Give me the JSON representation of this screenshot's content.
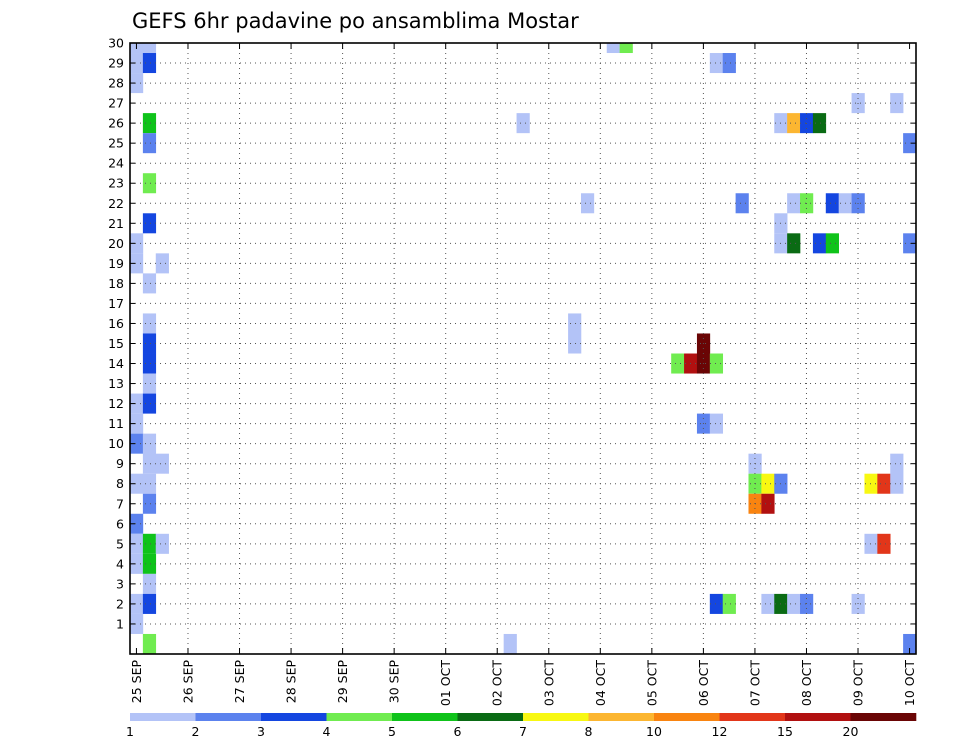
{
  "chart_data": {
    "type": "heatmap",
    "title": "GEFS 6hr padavine po ansamblima Mostar",
    "y_ticks": [
      "1",
      "2",
      "3",
      "4",
      "5",
      "6",
      "7",
      "8",
      "9",
      "10",
      "11",
      "12",
      "13",
      "14",
      "15",
      "16",
      "17",
      "18",
      "19",
      "20",
      "21",
      "22",
      "23",
      "24",
      "25",
      "26",
      "27",
      "28",
      "29",
      "30"
    ],
    "x_ticks": [
      "25 SEP",
      "26 SEP",
      "27 SEP",
      "28 SEP",
      "29 SEP",
      "30 SEP",
      "01 OCT",
      "02 OCT",
      "03 OCT",
      "04 OCT",
      "05 OCT",
      "06 OCT",
      "07 OCT",
      "08 OCT",
      "09 OCT",
      "10 OCT"
    ],
    "ylim": [
      0,
      30
    ],
    "grid": true,
    "colorbar": {
      "labels": [
        "1",
        "2",
        "3",
        "4",
        "5",
        "6",
        "7",
        "8",
        "10",
        "12",
        "15",
        "20"
      ],
      "colors": [
        "#b3c3f7",
        "#5c82ee",
        "#1446e0",
        "#70ec50",
        "#0fc31a",
        "#0a6b14",
        "#f8f812",
        "#fcb631",
        "#f98410",
        "#e2361a",
        "#b11010",
        "#6a0505"
      ]
    },
    "cells": [
      [
        0,
        30,
        1,
        1
      ],
      [
        0,
        29,
        1,
        1
      ],
      [
        0,
        28,
        1,
        1
      ],
      [
        0,
        20,
        1,
        1
      ],
      [
        0,
        19,
        1,
        1
      ],
      [
        0,
        12,
        1,
        1
      ],
      [
        0,
        11,
        1,
        1
      ],
      [
        0,
        10,
        2,
        1
      ],
      [
        0,
        8,
        1,
        1
      ],
      [
        0,
        6,
        2,
        1
      ],
      [
        0,
        5,
        1,
        1
      ],
      [
        0,
        4,
        1,
        1
      ],
      [
        0,
        2,
        1,
        1
      ],
      [
        0,
        1,
        1,
        1
      ],
      [
        1,
        30,
        1,
        1
      ],
      [
        1,
        29,
        3,
        1
      ],
      [
        1,
        26,
        5,
        1
      ],
      [
        1,
        25,
        2,
        1
      ],
      [
        1,
        23,
        4,
        1
      ],
      [
        1,
        21,
        3,
        1
      ],
      [
        1,
        18,
        1,
        1
      ],
      [
        1,
        16,
        1,
        1
      ],
      [
        1,
        15,
        3,
        1
      ],
      [
        1,
        14,
        3,
        1
      ],
      [
        1,
        13,
        1,
        1
      ],
      [
        1,
        12,
        3,
        1
      ],
      [
        1,
        9,
        1,
        2
      ],
      [
        1,
        8,
        1,
        1
      ],
      [
        1,
        7,
        2,
        1
      ],
      [
        1,
        5,
        5,
        1
      ],
      [
        1,
        4,
        5,
        1
      ],
      [
        1,
        3,
        1,
        1
      ],
      [
        1,
        2,
        3,
        1
      ],
      [
        1,
        0,
        4,
        1
      ],
      [
        2,
        19,
        1,
        1
      ],
      [
        2,
        9,
        1,
        1
      ],
      [
        2,
        5,
        1,
        1
      ],
      [
        29,
        0,
        1,
        1
      ],
      [
        30,
        26,
        1,
        1
      ],
      [
        34,
        15,
        1,
        2
      ],
      [
        35,
        22,
        1,
        1
      ],
      [
        37,
        30,
        1,
        1
      ],
      [
        38,
        30,
        4,
        1
      ],
      [
        42,
        14,
        4,
        1
      ],
      [
        43,
        14,
        11,
        1
      ],
      [
        44,
        14,
        12,
        2
      ],
      [
        45,
        14,
        4,
        1
      ],
      [
        44,
        11,
        2,
        1
      ],
      [
        45,
        11,
        1,
        1
      ],
      [
        45,
        29,
        1,
        1
      ],
      [
        46,
        29,
        2,
        1
      ],
      [
        45,
        2,
        3,
        1
      ],
      [
        46,
        2,
        4,
        1
      ],
      [
        47,
        22,
        2,
        1
      ],
      [
        48,
        9,
        1,
        1
      ],
      [
        48,
        8,
        4,
        1
      ],
      [
        48,
        7,
        9,
        1
      ],
      [
        49,
        8,
        7,
        1
      ],
      [
        49,
        7,
        11,
        1
      ],
      [
        49,
        2,
        1,
        1
      ],
      [
        50,
        26,
        1,
        1
      ],
      [
        50,
        21,
        1,
        1
      ],
      [
        50,
        20,
        1,
        1
      ],
      [
        50,
        8,
        2,
        1
      ],
      [
        50,
        2,
        6,
        1
      ],
      [
        51,
        26,
        8,
        1
      ],
      [
        51,
        22,
        1,
        1
      ],
      [
        51,
        20,
        6,
        1
      ],
      [
        51,
        2,
        1,
        1
      ],
      [
        52,
        26,
        3,
        1
      ],
      [
        52,
        22,
        4,
        1
      ],
      [
        52,
        2,
        2,
        1
      ],
      [
        53,
        26,
        6,
        1
      ],
      [
        53,
        20,
        3,
        1
      ],
      [
        54,
        22,
        3,
        1
      ],
      [
        54,
        20,
        5,
        1
      ],
      [
        55,
        22,
        1,
        1
      ],
      [
        56,
        22,
        2,
        1
      ],
      [
        56,
        27,
        1,
        1
      ],
      [
        56,
        2,
        1,
        1
      ],
      [
        57,
        8,
        7,
        1
      ],
      [
        57,
        5,
        1,
        1
      ],
      [
        58,
        8,
        10,
        1
      ],
      [
        58,
        5,
        10,
        1
      ],
      [
        59,
        27,
        1,
        1
      ],
      [
        59,
        8,
        1,
        2
      ],
      [
        60,
        25,
        2,
        1
      ],
      [
        60,
        20,
        2,
        1
      ],
      [
        60,
        0,
        2,
        1
      ]
    ]
  }
}
